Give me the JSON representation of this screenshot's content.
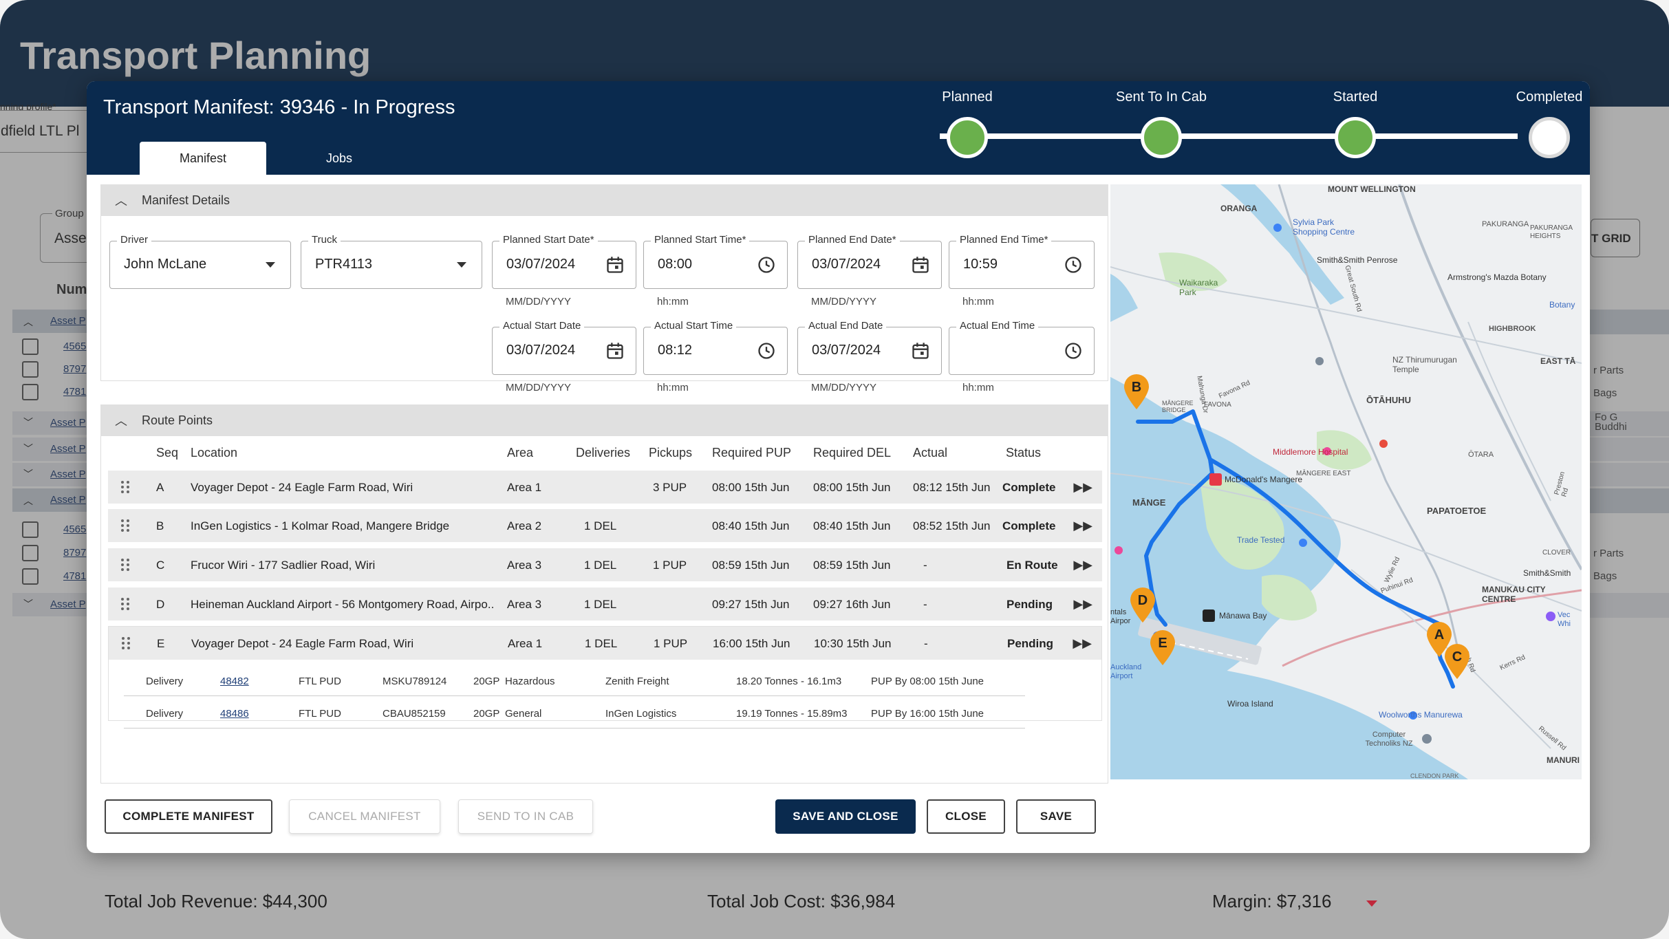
{
  "app": {
    "title": "Transport Planning",
    "planning_profile_label": "nning profile*",
    "planning_profile_value": "dfield LTL Pl",
    "group_label": "Group",
    "group_value": "Asse",
    "num_header": "Num",
    "grid_button": "T GRID",
    "rows": [
      {
        "label": "Asset P",
        "links": [
          "4565",
          "8797",
          "4781"
        ]
      },
      {
        "label": "Asset P"
      },
      {
        "label": "Asset P"
      },
      {
        "label": "Asset P"
      },
      {
        "label": "Asset P",
        "links": [
          "4565",
          "8797",
          "4781"
        ]
      },
      {
        "label": "Asset P"
      }
    ],
    "right_snippets": [
      "r Parts",
      "Bags",
      "Fo G",
      "Buddhi",
      "r Parts",
      "Bags"
    ],
    "totals": {
      "revenue": "Total Job Revenue: $44,300",
      "cost": "Total Job Cost: $36,984",
      "margin": "Margin: $7,316"
    }
  },
  "modal": {
    "title": "Transport Manifest: 39346 - In Progress",
    "tabs": [
      {
        "label": "Manifest",
        "active": true
      },
      {
        "label": "Jobs",
        "active": false
      }
    ],
    "stepper": [
      {
        "label": "Planned",
        "done": true
      },
      {
        "label": "Sent To In Cab",
        "done": true
      },
      {
        "label": "Started",
        "done": true
      },
      {
        "label": "Completed",
        "done": false
      }
    ],
    "details": {
      "section_title": "Manifest Details",
      "driver": {
        "label": "Driver",
        "value": "John McLane"
      },
      "truck": {
        "label": "Truck",
        "value": "PTR4113"
      },
      "planned_start_date": {
        "label": "Planned Start Date*",
        "value": "03/07/2024",
        "help": "MM/DD/YYYY"
      },
      "planned_start_time": {
        "label": "Planned Start Time*",
        "value": "08:00",
        "help": "hh:mm"
      },
      "planned_end_date": {
        "label": "Planned End Date*",
        "value": "03/07/2024",
        "help": "MM/DD/YYYY"
      },
      "planned_end_time": {
        "label": "Planned End Time*",
        "value": "10:59",
        "help": "hh:mm"
      },
      "actual_start_date": {
        "label": "Actual Start Date",
        "value": "03/07/2024",
        "help": "MM/DD/YYYY"
      },
      "actual_start_time": {
        "label": "Actual Start Time",
        "value": "08:12",
        "help": "hh:mm"
      },
      "actual_end_date": {
        "label": "Actual End Date",
        "value": "03/07/2024",
        "help": "MM/DD/YYYY"
      },
      "actual_end_time": {
        "label": "Actual End Time",
        "value": "",
        "help": "hh:mm"
      }
    },
    "route": {
      "section_title": "Route Points",
      "columns": [
        "Seq",
        "Location",
        "Area",
        "Deliveries",
        "Pickups",
        "Required PUP",
        "Required DEL",
        "Actual",
        "Status"
      ],
      "rows": [
        {
          "seq": "A",
          "location": "Voyager Depot - 24 Eagle Farm Road, Wiri",
          "area": "Area 1",
          "deliveries": "",
          "pickups": "3 PUP",
          "req_pup": "08:00 15th Jun",
          "req_del": "08:00 15th Jun",
          "actual": "08:12 15th Jun",
          "status": "Complete"
        },
        {
          "seq": "B",
          "location": "InGen Logistics - 1 Kolmar Road, Mangere Bridge",
          "area": "Area 2",
          "deliveries": "1 DEL",
          "pickups": "",
          "req_pup": "08:40 15th Jun",
          "req_del": "08:40 15th Jun",
          "actual": "08:52 15th Jun",
          "status": "Complete"
        },
        {
          "seq": "C",
          "location": "Frucor Wiri - 177 Sadlier Road, Wiri",
          "area": "Area 3",
          "deliveries": "1 DEL",
          "pickups": "1 PUP",
          "req_pup": "08:59 15th Jun",
          "req_del": "08:59 15th Jun",
          "actual": "-",
          "status": "En Route"
        },
        {
          "seq": "D",
          "location": "Heineman Auckland Airport - 56 Montgomery Road, Airpo..",
          "area": "Area 3",
          "deliveries": "1 DEL",
          "pickups": "",
          "req_pup": "09:27 15th Jun",
          "req_del": "09:27 16th Jun",
          "actual": "-",
          "status": "Pending"
        },
        {
          "seq": "E",
          "location": "Voyager Depot - 24 Eagle Farm Road, Wiri",
          "area": "Area 1",
          "deliveries": "1 DEL",
          "pickups": "1 PUP",
          "req_pup": "16:00 15th Jun",
          "req_del": "10:30 15th Jun",
          "actual": "-",
          "status": "Pending"
        }
      ],
      "jobs": [
        {
          "type": "Delivery",
          "job": "48482",
          "service": "FTL PUD",
          "container": "MSKU789124",
          "size": "20GP",
          "category": "Hazardous",
          "customer": "Zenith Freight",
          "weight": "18.20 Tonnes - 16.1m3",
          "due": "PUP By 08:00 15th June"
        },
        {
          "type": "Delivery",
          "job": "48486",
          "service": "FTL PUD",
          "container": "CBAU852159",
          "size": "20GP",
          "category": "General",
          "customer": "InGen Logistics",
          "weight": "19.19 Tonnes - 15.89m3",
          "due": "PUP By 16:00 15th June"
        }
      ]
    },
    "map": {
      "places": [
        "MOUNT WELLINGTON",
        "ORANGA",
        "Sylvia Park Shopping Centre",
        "PAKURANGA",
        "PAKURANGA HEIGHTS",
        "Smith&Smith Penrose",
        "Waikaraka Park",
        "Armstrong's Mazda Botany",
        "Botany",
        "HIGHBROOK",
        "NZ Thirumurugan Temple",
        "EAST TĀ",
        "ŌTĀHUHU",
        "MĀNGERE BRIDGE",
        "FAVONA",
        "Middlemore Hospital",
        "ŌTARA",
        "McDonald's Mangere",
        "MĀNGERE EAST",
        "MĀNGE",
        "PAPATOETOE",
        "Trade Tested",
        "CLOVER",
        "Smith&Smith",
        "MANUKAU CITY CENTRE",
        "Mānawa Bay",
        "Auckland Airport",
        "Wiroa Island",
        "Woolworths Manurewa",
        "Computer Technoliks NZ",
        "MANURI",
        "CLENDON PARK",
        "ntals Airpor",
        "Vec Whi"
      ],
      "roads": [
        "Great South Rd",
        "Mahunga Dr",
        "Favona Rd",
        "Puhinui Rd",
        "Wylie Rd",
        "Ash Rd",
        "Kerrs Rd",
        "Russell Rd",
        "Preston Rd"
      ],
      "markers": [
        "A",
        "B",
        "C",
        "D",
        "E"
      ]
    },
    "buttons": {
      "complete": "COMPLETE MANIFEST",
      "cancel": "CANCEL MANIFEST",
      "send": "SEND TO IN CAB",
      "save_close": "SAVE AND CLOSE",
      "close": "CLOSE",
      "save": "SAVE"
    },
    "colors": {
      "header": "#0a2a4e",
      "done_step": "#6ab04c",
      "route_line": "#1a73e8",
      "marker": "#f29a1a"
    }
  }
}
